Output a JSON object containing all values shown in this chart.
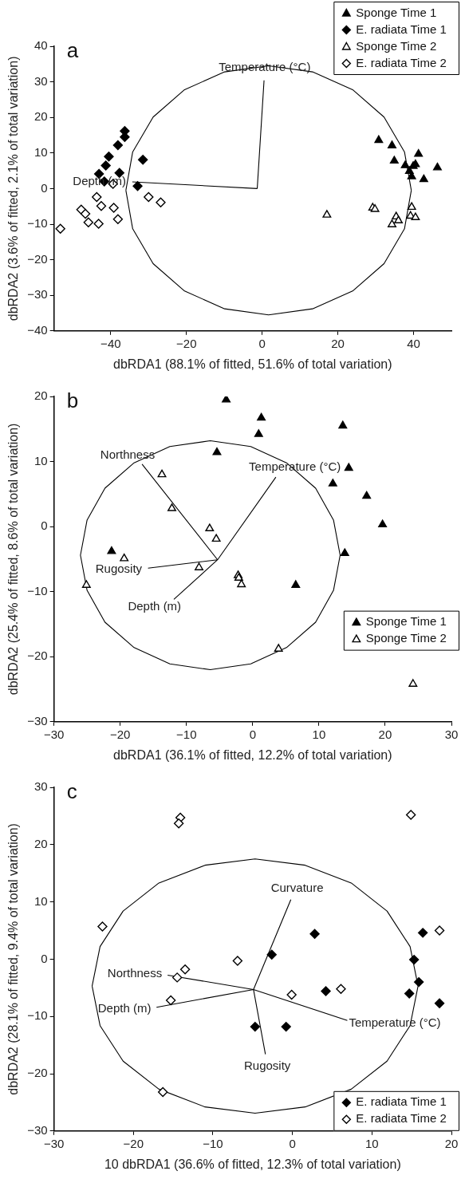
{
  "chart_data": [
    {
      "type": "scatter",
      "xlabel": "dbRDA1 (88.1% of fitted, 51.6% of total variation)",
      "ylabel": "dbRDA2 (3.6% of fitted, 2.1% of total variation)",
      "xlim": [
        -55,
        50
      ],
      "xticks": [
        -40,
        -20,
        0,
        20,
        40
      ],
      "ylim": [
        -40,
        40
      ],
      "yticks": [
        -40,
        -30,
        -20,
        -10,
        0,
        10,
        20,
        30,
        40
      ],
      "grid": false,
      "legend": "top right",
      "annotations": [
        "a",
        "Temperature (°C)",
        "Depth (m)"
      ],
      "series": [
        {
          "name": "Sponge Time 1",
          "color": "#000000",
          "marker": "triangle",
          "x": [
            30.8,
            34.3,
            41.3,
            34.9,
            37.8,
            40.5,
            46.3,
            38.9,
            39.5,
            42.7,
            39.9
          ],
          "values": [
            13.6,
            12.1,
            9.7,
            7.8,
            6.5,
            6.8,
            5.9,
            4.9,
            3.4,
            2.6,
            6.3
          ]
        },
        {
          "name": "E. radiata Time 1",
          "color": "#000000",
          "marker": "diamond",
          "x": [
            -36.3,
            -36.3,
            -38.1,
            -40.5,
            -41.3,
            -43.1,
            -37.7,
            -41.7,
            -31.5,
            -32.9
          ],
          "values": [
            16.2,
            14.5,
            12.2,
            9.0,
            6.5,
            4.1,
            4.4,
            2.0,
            8.1,
            0.7
          ]
        },
        {
          "name": "Sponge Time 2",
          "color": "#ffffff",
          "marker": "triangle",
          "x": [
            17.1,
            29.2,
            29.8,
            39.5,
            35.4,
            36.0,
            34.3,
            39.2,
            40.5
          ],
          "values": [
            -7.4,
            -5.4,
            -5.8,
            -5.2,
            -7.9,
            -9.0,
            -10.1,
            -7.7,
            -8.1
          ]
        },
        {
          "name": "E. radiata Time 2",
          "color": "#ffffff",
          "marker": "diamond",
          "x": [
            -39.4,
            -30.0,
            -26.8,
            -43.7,
            -42.5,
            -39.2,
            -47.8,
            -46.7,
            -45.9,
            -43.2,
            -38.1,
            -53.3
          ],
          "values": [
            1.3,
            -2.4,
            -3.9,
            -2.4,
            -4.9,
            -5.4,
            -5.9,
            -7.1,
            -9.5,
            -9.9,
            -8.6,
            -11.3
          ]
        },
        {
          "type": "line",
          "color": "#000000",
          "marker": "none",
          "x": [
            -1.3,
            0.5,
            null,
            -1.3,
            -34.3
          ],
          "values": [
            0,
            30.4,
            null,
            0,
            1.9
          ]
        },
        {
          "type": "line",
          "color": "#000000",
          "marker": "none",
          "x": [
            -36.0,
            -34.2,
            -28.8,
            -20.5,
            -9.9,
            1.7,
            13.3,
            23.9,
            32.2,
            37.6,
            39.4,
            null,
            -36.0,
            -34.2,
            -28.8,
            -20.5,
            -9.9,
            1.7,
            13.3,
            23.9,
            32.2,
            37.6,
            39.4
          ],
          "values": [
            -0.5,
            10.3,
            20.1,
            27.8,
            32.8,
            34.5,
            32.8,
            27.8,
            20.1,
            10.3,
            -0.5,
            null,
            -0.5,
            -11.3,
            -21.1,
            -28.8,
            -33.8,
            -35.5,
            -33.8,
            -28.8,
            -21.1,
            -11.3,
            -0.5
          ]
        }
      ]
    },
    {
      "type": "scatter",
      "xlabel": "dbRDA1 (36.1% of fitted, 12.2% of total variation)",
      "ylabel": "dbRDA2 (25.4% of fitted, 8.6% of total variation)",
      "xlim": [
        -30,
        30
      ],
      "xticks": [
        -30,
        -20,
        -10,
        0,
        10,
        20,
        30
      ],
      "ylim": [
        -30,
        20
      ],
      "yticks": [
        -30,
        -20,
        -10,
        0,
        10,
        20
      ],
      "grid": false,
      "legend": "right",
      "annotations": [
        "b",
        "Northness",
        "Temperature (°C)",
        "Rugosity",
        "Depth (m)"
      ],
      "series": [
        {
          "name": "Sponge Time 1",
          "color": "#000000",
          "marker": "triangle",
          "x": [
            -4.0,
            1.3,
            0.9,
            13.6,
            -5.4,
            14.5,
            12.1,
            17.2,
            19.6,
            13.9,
            -21.3,
            6.5
          ],
          "values": [
            19.5,
            16.7,
            14.2,
            15.5,
            11.4,
            9.0,
            6.6,
            4.7,
            0.3,
            -4.1,
            -3.8,
            -9.0
          ]
        },
        {
          "name": "Sponge Time 2",
          "color": "#ffffff",
          "marker": "triangle",
          "x": [
            -13.7,
            -12.2,
            -6.5,
            -5.5,
            -19.4,
            -8.1,
            -2.2,
            -2.1,
            -1.7,
            -25.1,
            3.9,
            24.2
          ],
          "values": [
            8.0,
            2.8,
            -0.3,
            -1.9,
            -4.9,
            -6.3,
            -7.5,
            -7.9,
            -8.9,
            -9.0,
            -18.8,
            -24.2
          ]
        },
        {
          "type": "line",
          "color": "#000000",
          "marker": "none",
          "x": [
            -5.3,
            -16.7,
            null,
            -5.3,
            3.5,
            null,
            -5.3,
            -15.8,
            null,
            -5.3,
            -11.9
          ],
          "values": [
            -5.1,
            9.6,
            null,
            -5.1,
            7.6,
            null,
            -5.1,
            -6.4,
            null,
            -5.1,
            -11.2
          ]
        },
        {
          "type": "line",
          "color": "#000000",
          "marker": "none",
          "x": [
            -26.0,
            -25.0,
            -22.3,
            -17.9,
            -12.5,
            -6.4,
            -0.3,
            5.1,
            9.5,
            12.2,
            13.2,
            null,
            -26.0,
            -25.0,
            -22.3,
            -17.9,
            -12.5,
            -6.4,
            -0.3,
            5.1,
            9.5,
            12.2,
            13.2
          ],
          "values": [
            -4.4,
            1.0,
            5.9,
            9.8,
            12.3,
            13.2,
            12.3,
            9.8,
            5.9,
            1.0,
            -4.4,
            null,
            -4.4,
            -9.8,
            -14.7,
            -18.6,
            -21.1,
            -22.0,
            -21.1,
            -18.6,
            -14.7,
            -9.8,
            -4.4
          ]
        }
      ]
    },
    {
      "type": "scatter",
      "xlabel": "10 dbRDA1 (36.6% of fitted, 12.3% of total variation)",
      "ylabel": "dbRDA2 (28.1% of fitted, 9.4% of total variation)",
      "xlim": [
        -30,
        20
      ],
      "xticks": [
        -30,
        -20,
        -10,
        0,
        10,
        20
      ],
      "ylim": [
        -30,
        30
      ],
      "yticks": [
        -30,
        -20,
        -10,
        0,
        10,
        20,
        30
      ],
      "grid": false,
      "legend": "bottom right",
      "annotations": [
        "c",
        "Curvature",
        "Northness",
        "Depth (m)",
        "Temperature (°C)",
        "Rugosity"
      ],
      "series": [
        {
          "name": "E. radiata Time 1",
          "color": "#000000",
          "marker": "diamond",
          "x": [
            2.8,
            16.4,
            -2.6,
            15.3,
            15.9,
            4.2,
            14.7,
            18.5,
            -4.7,
            -0.8
          ],
          "values": [
            4.4,
            4.6,
            0.8,
            -0.1,
            -4.0,
            -5.6,
            -6.0,
            -7.7,
            -11.8,
            -11.8
          ]
        },
        {
          "name": "E. radiata Time 2",
          "color": "#ffffff",
          "marker": "diamond",
          "x": [
            14.9,
            -14.1,
            -14.3,
            -23.9,
            18.5,
            -6.9,
            -13.5,
            -14.5,
            6.1,
            -0.1,
            -15.3,
            -16.3
          ],
          "values": [
            25.2,
            24.7,
            23.7,
            5.7,
            5.0,
            -0.3,
            -1.8,
            -3.2,
            -5.2,
            -6.2,
            -7.2,
            -23.2
          ]
        },
        {
          "type": "line",
          "color": "#000000",
          "marker": "none",
          "x": [
            -4.9,
            -0.2,
            null,
            -4.9,
            -15.7,
            null,
            -4.9,
            -17.1,
            null,
            -4.9,
            6.9,
            null,
            -4.9,
            -3.4
          ],
          "values": [
            -5.3,
            10.4,
            null,
            -5.3,
            -2.8,
            null,
            -5.3,
            -8.4,
            null,
            -5.3,
            -10.7,
            null,
            -5.3,
            -16.6
          ]
        },
        {
          "type": "line",
          "color": "#000000",
          "marker": "none",
          "x": [
            -25.2,
            -24.2,
            -21.3,
            -16.8,
            -11.0,
            -4.7,
            1.6,
            7.4,
            11.9,
            14.8,
            15.8,
            null,
            -25.2,
            -24.2,
            -21.3,
            -16.8,
            -11.0,
            -4.7,
            1.6,
            7.4,
            11.9,
            14.8,
            15.8
          ],
          "values": [
            -4.7,
            2.2,
            8.4,
            13.3,
            16.4,
            17.5,
            16.4,
            13.3,
            8.4,
            2.2,
            -4.7,
            null,
            -4.7,
            -11.6,
            -17.8,
            -22.7,
            -25.8,
            -26.9,
            -25.8,
            -22.7,
            -17.8,
            -11.6,
            -4.7
          ]
        }
      ]
    }
  ]
}
